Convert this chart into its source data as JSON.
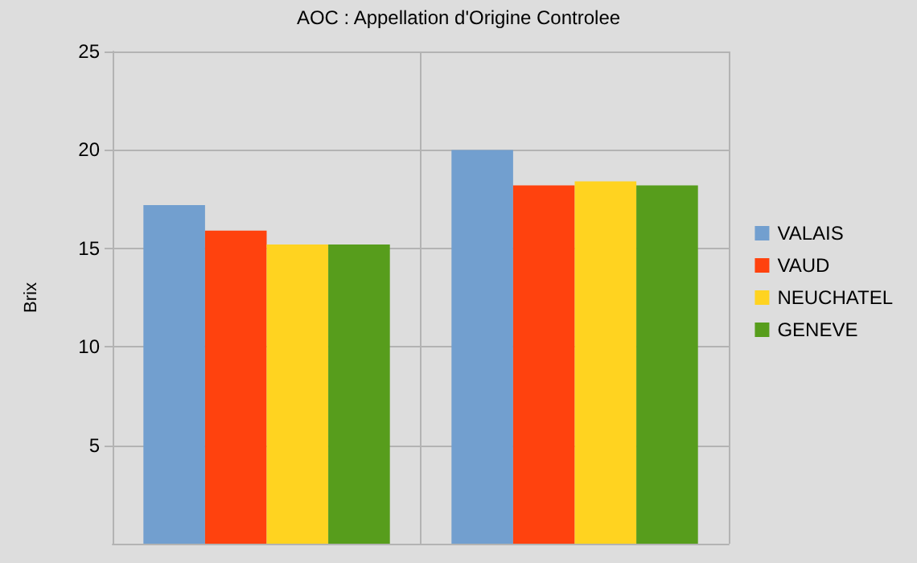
{
  "chart_data": {
    "type": "bar",
    "title": "AOC : Appellation d'Origine Controlee",
    "ylabel": "Brix",
    "categories": [
      null,
      null
    ],
    "series": [
      {
        "name": "VALAIS",
        "color": "#729fcf",
        "values": [
          17.2,
          20.0
        ]
      },
      {
        "name": "VAUD",
        "color": "#ff420e",
        "values": [
          15.9,
          18.2
        ]
      },
      {
        "name": "NEUCHATEL",
        "color": "#ffd320",
        "values": [
          15.2,
          18.4
        ]
      },
      {
        "name": "GENEVE",
        "color": "#579d1c",
        "values": [
          15.2,
          18.2
        ]
      }
    ],
    "ylim": [
      0,
      25
    ],
    "yticks": [
      5,
      10,
      15,
      20,
      25
    ],
    "grid": true,
    "legend": "right"
  }
}
